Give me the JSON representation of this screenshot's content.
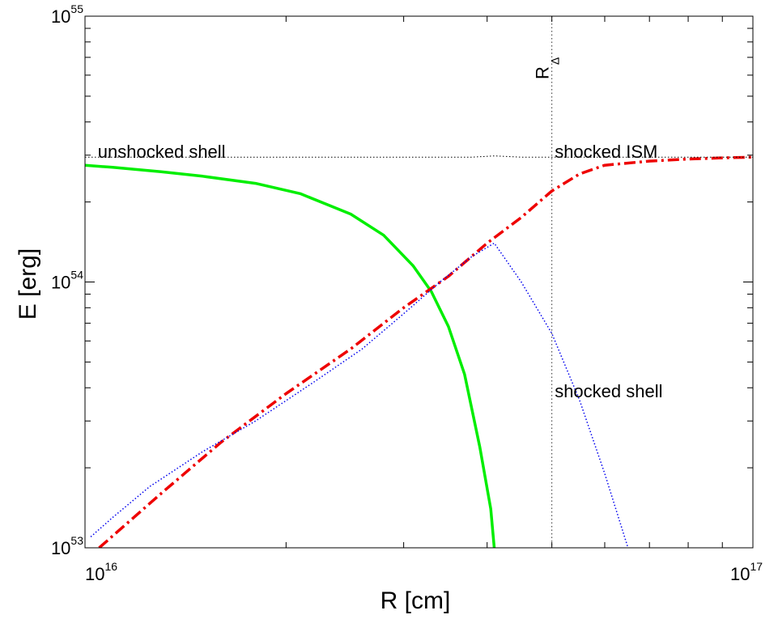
{
  "chart_data": {
    "type": "line",
    "title": "",
    "xlabel": "R [cm]",
    "ylabel": "E [erg]",
    "xscale": "log",
    "yscale": "log",
    "xlim": [
      1e+16,
      1e+17
    ],
    "ylim": [
      1e+53,
      1e+55
    ],
    "grid": false,
    "legend": "none",
    "x_ticks": [
      {
        "base": "10",
        "exp": "16",
        "value": 1e+16
      },
      {
        "base": "10",
        "exp": "17",
        "value": 1e+17
      }
    ],
    "y_ticks": [
      {
        "base": "10",
        "exp": "53",
        "value": 1e+53
      },
      {
        "base": "10",
        "exp": "54",
        "value": 1e+54
      },
      {
        "base": "10",
        "exp": "55",
        "value": 1e+55
      }
    ],
    "series": [
      {
        "key": "unshocked",
        "color": "#00ee00",
        "style": "solid",
        "x": [
          1e+16,
          1.1e+16,
          1.3e+16,
          1.5e+16,
          1.8e+16,
          2.1e+16,
          2.5e+16,
          2.8e+16,
          3.1e+16,
          3.3e+16,
          3.5e+16,
          3.7e+16,
          3.9e+16,
          4.05e+16,
          4.1e+16
        ],
        "y": [
          2.75e+54,
          2.7e+54,
          2.6e+54,
          2.5e+54,
          2.35e+54,
          2.15e+54,
          1.8e+54,
          1.5e+54,
          1.15e+54,
          9.2e+53,
          6.8e+53,
          4.5e+53,
          2.4e+53,
          1.4e+53,
          1e+53
        ]
      },
      {
        "key": "shocked_ism",
        "color": "#ee0000",
        "style": "dashdot",
        "x": [
          1.05e+16,
          1.3e+16,
          1.6e+16,
          2e+16,
          2.5e+16,
          3e+16,
          3.5e+16,
          4e+16,
          4.5e+16,
          5e+16,
          5.5e+16,
          6e+16,
          7e+16,
          8e+16,
          9e+16,
          1e+17
        ],
        "y": [
          1e+53,
          1.6e+53,
          2.5e+53,
          3.8e+53,
          5.6e+53,
          8e+53,
          1.05e+54,
          1.4e+54,
          1.75e+54,
          2.2e+54,
          2.55e+54,
          2.75e+54,
          2.85e+54,
          2.9e+54,
          2.93e+54,
          2.95e+54
        ]
      },
      {
        "key": "shocked_shell",
        "color": "#0000ee",
        "style": "dotted",
        "x": [
          1.02e+16,
          1.1e+16,
          1.25e+16,
          1.5e+16,
          1.8e+16,
          2.2e+16,
          2.6e+16,
          3e+16,
          3.4e+16,
          3.8e+16,
          4.1e+16,
          4.5e+16,
          5e+16,
          5.5e+16,
          6e+16,
          6.5e+16
        ],
        "y": [
          1.1e+53,
          1.3e+53,
          1.7e+53,
          2.3e+53,
          3e+53,
          4.2e+53,
          5.6e+53,
          7.6e+53,
          1e+54,
          1.25e+54,
          1.4e+54,
          1e+54,
          6.4e+53,
          3.6e+53,
          1.9e+53,
          1e+53
        ]
      },
      {
        "key": "total",
        "color": "#000000",
        "style": "dotted",
        "x": [
          1e+16,
          2e+16,
          3e+16,
          3.8e+16,
          4.1e+16,
          4.5e+16,
          5e+16,
          6e+16,
          8e+16,
          1e+17
        ],
        "y": [
          2.95e+54,
          2.95e+54,
          2.95e+54,
          2.95e+54,
          2.98e+54,
          2.95e+54,
          2.95e+54,
          2.95e+54,
          2.95e+54,
          2.95e+54
        ]
      }
    ],
    "vline": {
      "x": 5e+16,
      "label": "R",
      "sub": "Δ"
    },
    "annotations": [
      {
        "key": "unshocked",
        "text": "unshocked shell",
        "x": 1.045e+16,
        "y": 3.1e+54
      },
      {
        "key": "ism",
        "text": "shocked ISM",
        "x": 5.05e+16,
        "y": 3.1e+54
      },
      {
        "key": "shell",
        "text": "shocked shell",
        "x": 5.05e+16,
        "y": 3.9e+53
      }
    ]
  }
}
